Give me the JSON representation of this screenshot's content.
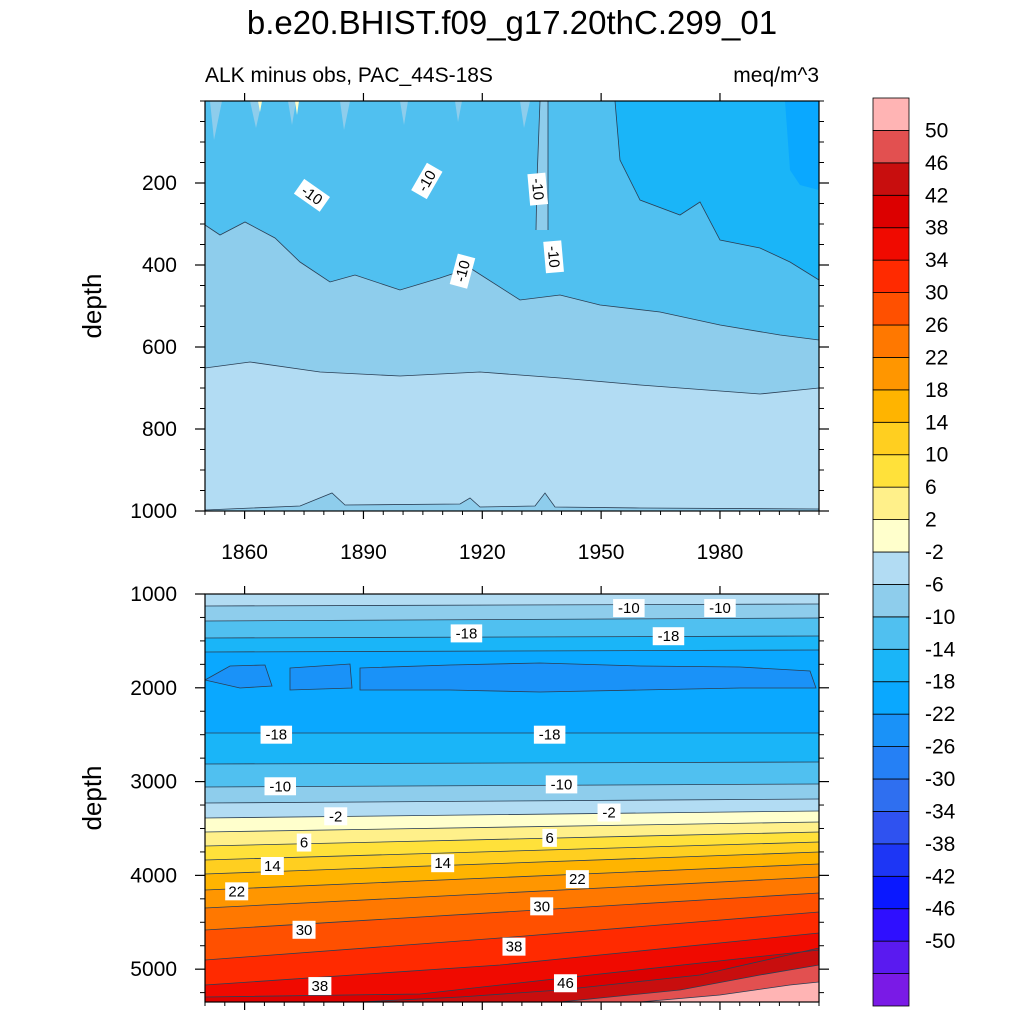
{
  "chart_data": {
    "type": "contour",
    "title": "b.e20.BHIST.f09_g17.20thC.299_01",
    "subtitle_left": "ALK minus obs, PAC_44S-18S",
    "subtitle_right": "meq/m^3",
    "ylabel": "depth",
    "xlim": [
      1850,
      2005
    ],
    "x_ticks": [
      1860,
      1890,
      1920,
      1950,
      1980
    ],
    "x_tick_labels": [
      "1860",
      "1890",
      "1920",
      "1950",
      "1980"
    ],
    "panels": [
      {
        "name": "upper",
        "ylim": [
          0,
          1000
        ],
        "y_ticks": [
          200,
          400,
          600,
          800,
          1000
        ],
        "y_tick_labels": [
          "200",
          "400",
          "600",
          "800",
          "1000"
        ],
        "x_labels_shown": true,
        "contour_labels": [
          {
            "text": "-10",
            "x": 1877,
            "y": 230,
            "rot": 35
          },
          {
            "text": "-10",
            "x": 1906,
            "y": 195,
            "rot": -60
          },
          {
            "text": "-10",
            "x": 1915,
            "y": 415,
            "rot": -75
          },
          {
            "text": "-10",
            "x": 1934,
            "y": 215,
            "rot": 85
          },
          {
            "text": "-10",
            "x": 1938,
            "y": 380,
            "rot": 85
          }
        ]
      },
      {
        "name": "lower",
        "ylim": [
          1000,
          5350
        ],
        "y_ticks": [
          1000,
          2000,
          3000,
          4000,
          5000
        ],
        "y_tick_labels": [
          "1000",
          "2000",
          "3000",
          "4000",
          "5000"
        ],
        "x_labels_shown": false,
        "contour_labels": [
          {
            "text": "-10",
            "x": 1957,
            "y": 1150
          },
          {
            "text": "-10",
            "x": 1980,
            "y": 1150
          },
          {
            "text": "-18",
            "x": 1916,
            "y": 1420
          },
          {
            "text": "-18",
            "x": 1967,
            "y": 1450
          },
          {
            "text": "-18",
            "x": 1868,
            "y": 2500
          },
          {
            "text": "-18",
            "x": 1937,
            "y": 2500
          },
          {
            "text": "-10",
            "x": 1869,
            "y": 3050
          },
          {
            "text": "-10",
            "x": 1940,
            "y": 3030
          },
          {
            "text": "-2",
            "x": 1883,
            "y": 3370
          },
          {
            "text": "-2",
            "x": 1952,
            "y": 3330
          },
          {
            "text": "6",
            "x": 1875,
            "y": 3650
          },
          {
            "text": "6",
            "x": 1937,
            "y": 3600
          },
          {
            "text": "14",
            "x": 1867,
            "y": 3900
          },
          {
            "text": "14",
            "x": 1910,
            "y": 3870
          },
          {
            "text": "22",
            "x": 1858,
            "y": 4170
          },
          {
            "text": "22",
            "x": 1944,
            "y": 4040
          },
          {
            "text": "30",
            "x": 1875,
            "y": 4580
          },
          {
            "text": "30",
            "x": 1935,
            "y": 4330
          },
          {
            "text": "38",
            "x": 1928,
            "y": 4760
          },
          {
            "text": "38",
            "x": 1879,
            "y": 5180
          },
          {
            "text": "46",
            "x": 1941,
            "y": 5150
          }
        ]
      }
    ],
    "colorbar": {
      "levels": [
        -50,
        -46,
        -42,
        -38,
        -34,
        -30,
        -26,
        -22,
        -18,
        -14,
        -10,
        -6,
        -2,
        2,
        6,
        10,
        14,
        18,
        22,
        26,
        30,
        34,
        38,
        42,
        46,
        50
      ],
      "labels": [
        "50",
        "46",
        "42",
        "38",
        "34",
        "30",
        "26",
        "22",
        "18",
        "14",
        "10",
        "6",
        "2",
        "-2",
        "-6",
        "-10",
        "-14",
        "-18",
        "-22",
        "-26",
        "-30",
        "-34",
        "-38",
        "-42",
        "-46",
        "-50"
      ],
      "colors": [
        "#7a1ae6",
        "#5a1af0",
        "#2f0fff",
        "#0a18ff",
        "#1d36f5",
        "#2f52f0",
        "#2f6ff0",
        "#2580f5",
        "#1a92f8",
        "#0aa8ff",
        "#1ab5f8",
        "#50c0f0",
        "#8ecdec",
        "#b2dcf3",
        "#ffffcc",
        "#fff08a",
        "#ffe13a",
        "#ffcf20",
        "#ffb400",
        "#ff9600",
        "#ff7800",
        "#ff5000",
        "#ff2a00",
        "#f00a00",
        "#dc0000",
        "#c80e0e",
        "#e25050",
        "#ffb4b4"
      ]
    }
  }
}
